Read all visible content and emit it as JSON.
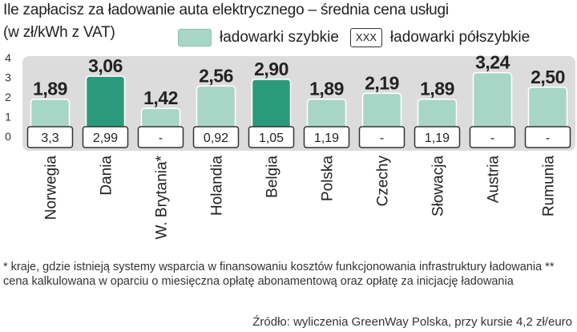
{
  "title": {
    "line1": "Ile zapłacisz za ładowanie auta elektrycznego – średnia cena usługi",
    "line2": "(w zł/kWh z VAT)"
  },
  "legend": {
    "fast": "ładowarki szybkie",
    "semi_sample": "XXX",
    "semi": "ładowarki półszybkie"
  },
  "colors": {
    "fast_bar": "#a8d6c6",
    "fast_bar_highlight": "#2b9a7c",
    "chart_background": "#dcdcdc",
    "text": "#222222"
  },
  "chart_data": {
    "type": "bar",
    "ylim": [
      0,
      4
    ],
    "yticks": [
      "0",
      "1",
      "2",
      "3",
      "4"
    ],
    "categories": [
      "Norwegia",
      "Dania",
      "W. Brytania*",
      "Holandia",
      "Belgia",
      "Polska",
      "Czechy",
      "Słowacja",
      "Austria",
      "Rumunia"
    ],
    "series": [
      {
        "name": "ładowarki szybkie",
        "values": [
          1.89,
          3.06,
          1.42,
          2.56,
          2.9,
          1.89,
          2.19,
          1.89,
          3.24,
          2.5
        ],
        "labels": [
          "1,89",
          "3,06",
          "1,42",
          "2,56",
          "2,90",
          "1,89",
          "2,19",
          "1,89",
          "3,24",
          "2,50"
        ],
        "highlight": [
          false,
          true,
          false,
          false,
          true,
          false,
          false,
          false,
          false,
          false
        ]
      },
      {
        "name": "ładowarki półszybkie",
        "labels": [
          "3,3",
          "2,99",
          "-",
          "0,92",
          "1,05",
          "1,19",
          "-",
          "1,19",
          "-",
          "-"
        ]
      }
    ]
  },
  "footnote": "* kraje, gdzie istnieją systemy wsparcia w finansowaniu kosztów funkcjonowania infrastruktury ładowania ** cena kalkulowana w oparciu o miesięczna opłatę abonamentową oraz opłatę za inicjację ładowania",
  "source": "Źródło: wyliczenia GreenWay Polska, przy kursie 4,2 zł/euro"
}
